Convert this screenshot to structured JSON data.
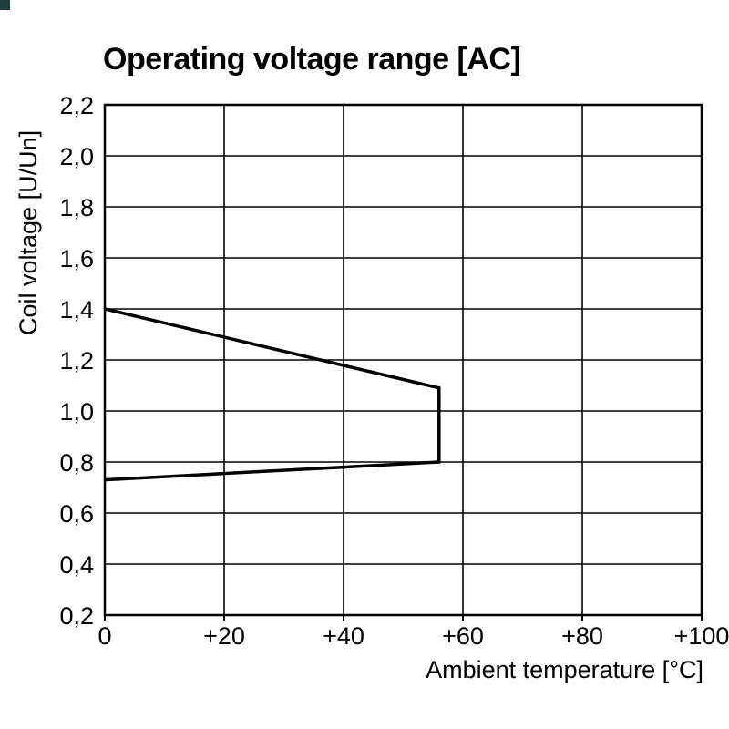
{
  "chart_data": {
    "type": "line",
    "title": "Operating voltage range [AC]",
    "xlabel": "Ambient temperature [°C]",
    "ylabel": "Coil voltage [U/Un]",
    "xlim": [
      0,
      100
    ],
    "ylim": [
      0.2,
      2.2
    ],
    "grid": true,
    "legend": false,
    "x_ticks": [
      {
        "value": 0,
        "label": "0"
      },
      {
        "value": 20,
        "label": "+20"
      },
      {
        "value": 40,
        "label": "+40"
      },
      {
        "value": 60,
        "label": "+60"
      },
      {
        "value": 80,
        "label": "+80"
      },
      {
        "value": 100,
        "label": "+100"
      }
    ],
    "y_ticks": [
      {
        "value": 0.2,
        "label": "0,2"
      },
      {
        "value": 0.4,
        "label": "0,4"
      },
      {
        "value": 0.6,
        "label": "0,6"
      },
      {
        "value": 0.8,
        "label": "0,8"
      },
      {
        "value": 1.0,
        "label": "1,0"
      },
      {
        "value": 1.2,
        "label": "1,2"
      },
      {
        "value": 1.4,
        "label": "1,4"
      },
      {
        "value": 1.6,
        "label": "1,6"
      },
      {
        "value": 1.8,
        "label": "1,8"
      },
      {
        "value": 2.0,
        "label": "2,0"
      },
      {
        "value": 2.2,
        "label": "2,2"
      }
    ],
    "series": [
      {
        "name": "operating-range-boundary",
        "color": "#000000",
        "points": [
          [
            0,
            1.4
          ],
          [
            56,
            1.09
          ],
          [
            56,
            0.8
          ],
          [
            0,
            0.73
          ]
        ]
      }
    ]
  },
  "colors": {
    "background": "#ffffff",
    "text": "#000000",
    "grid": "#000000",
    "border": "#000000",
    "line": "#000000",
    "corner_mark": "#1b3e3e"
  }
}
